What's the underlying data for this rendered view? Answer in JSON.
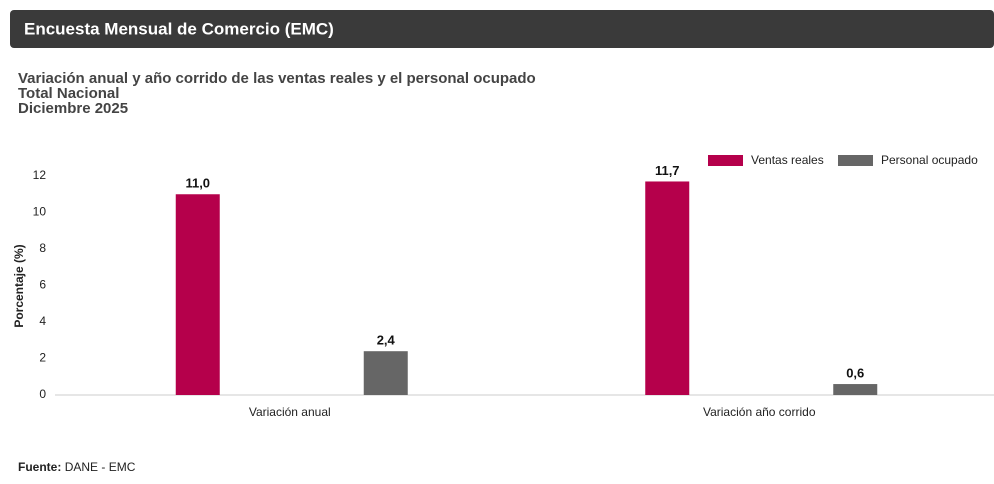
{
  "header": {
    "title": "Encuesta Mensual de Comercio (EMC)"
  },
  "chart_data": {
    "type": "bar",
    "title": "Variación anual y año corrido de las ventas reales y el personal ocupado",
    "subtitle": [
      "Total Nacional",
      "Diciembre 2025"
    ],
    "y_label": "Porcentaje (%)",
    "categories": [
      "Variación anual",
      "Variación año corrido"
    ],
    "series": [
      {
        "name": "Ventas reales",
        "color": "#b5004b",
        "values": [
          11.0,
          11.7
        ],
        "value_labels": [
          "11,0",
          "11,7"
        ]
      },
      {
        "name": "Personal ocupado",
        "color": "#666666",
        "values": [
          2.4,
          0.6
        ],
        "value_labels": [
          "2,4",
          "0,6"
        ]
      }
    ],
    "ylim": [
      0,
      12
    ],
    "yticks": [
      0,
      2,
      4,
      6,
      8,
      10,
      12
    ],
    "grid": false,
    "legend": "top-right"
  },
  "footer": {
    "label": "Fuente:",
    "text": "DANE - EMC"
  }
}
